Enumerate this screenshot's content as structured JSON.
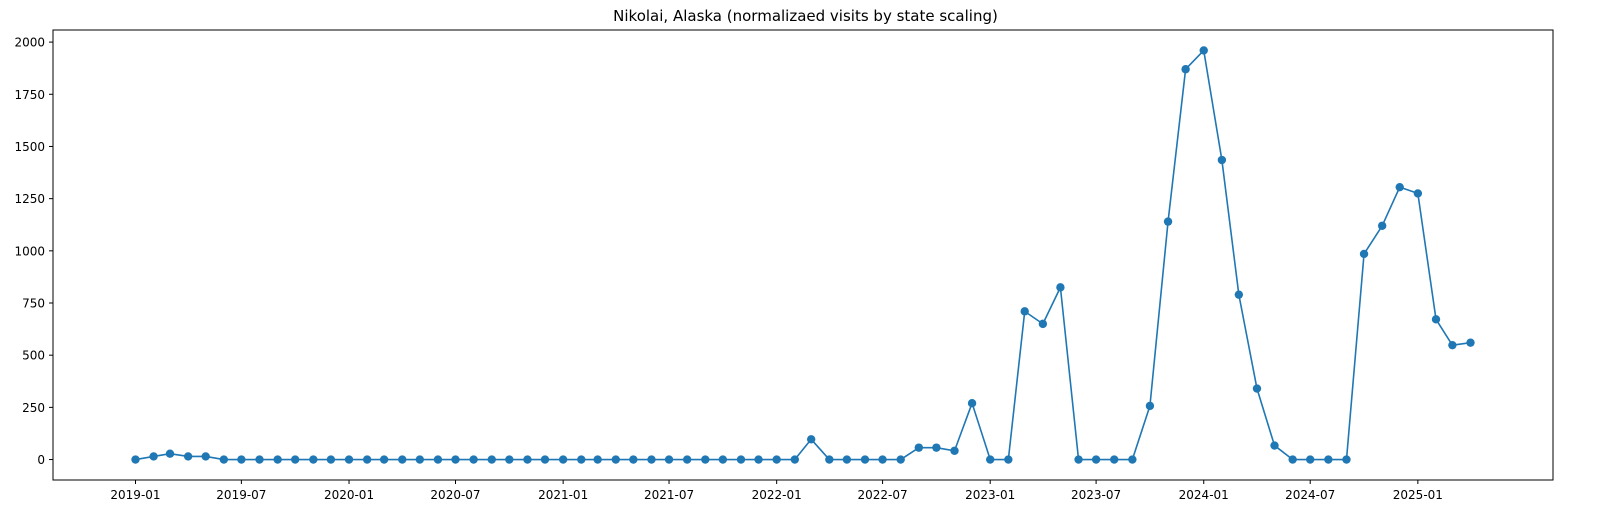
{
  "chart_data": {
    "type": "line",
    "title": "Nikolai, Alaska (normalizaed visits by state scaling)",
    "xlabel": "",
    "ylabel": "",
    "color": "#1f77b4",
    "marker": "circle",
    "grid": false,
    "legend": false,
    "xlim": [
      "2018-08-13",
      "2025-08-20"
    ],
    "ylim": [
      -98,
      2058
    ],
    "x_ticks": [
      "2019-01",
      "2019-07",
      "2020-01",
      "2020-07",
      "2021-01",
      "2021-07",
      "2022-01",
      "2022-07",
      "2023-01",
      "2023-07",
      "2024-01",
      "2024-07",
      "2025-01"
    ],
    "y_ticks": [
      0,
      250,
      500,
      750,
      1000,
      1250,
      1500,
      1750,
      2000
    ],
    "series": [
      {
        "x": [
          "2019-01",
          "2019-02",
          "2019-03",
          "2019-04",
          "2019-05",
          "2019-06",
          "2019-07",
          "2019-08",
          "2019-09",
          "2019-10",
          "2019-11",
          "2019-12",
          "2020-01",
          "2020-02",
          "2020-03",
          "2020-04",
          "2020-05",
          "2020-06",
          "2020-07",
          "2020-08",
          "2020-09",
          "2020-10",
          "2020-11",
          "2020-12",
          "2021-01",
          "2021-02",
          "2021-03",
          "2021-04",
          "2021-05",
          "2021-06",
          "2021-07",
          "2021-08",
          "2021-09",
          "2021-10",
          "2021-11",
          "2021-12",
          "2022-01",
          "2022-02",
          "2022-03",
          "2022-04",
          "2022-05",
          "2022-06",
          "2022-07",
          "2022-08",
          "2022-09",
          "2022-10",
          "2022-11",
          "2022-12",
          "2023-01",
          "2023-02",
          "2023-03",
          "2023-04",
          "2023-05",
          "2023-06",
          "2023-07",
          "2023-08",
          "2023-09",
          "2023-10",
          "2023-11",
          "2023-12",
          "2024-01",
          "2024-02",
          "2024-03",
          "2024-04",
          "2024-05",
          "2024-06",
          "2024-07",
          "2024-08",
          "2024-09",
          "2024-10",
          "2024-11",
          "2024-12",
          "2025-01",
          "2025-02",
          "2025-03",
          "2025-04"
        ],
        "values": [
          0,
          15,
          28,
          15,
          15,
          0,
          0,
          0,
          0,
          0,
          0,
          0,
          0,
          0,
          0,
          0,
          0,
          0,
          0,
          0,
          0,
          0,
          0,
          0,
          0,
          0,
          0,
          0,
          0,
          0,
          0,
          0,
          0,
          0,
          0,
          0,
          0,
          0,
          97,
          0,
          0,
          0,
          0,
          0,
          57,
          57,
          42,
          270,
          0,
          0,
          710,
          650,
          825,
          0,
          0,
          0,
          0,
          257,
          1140,
          1870,
          1960,
          1435,
          790,
          340,
          67,
          0,
          0,
          0,
          0,
          985,
          1120,
          1305,
          1275,
          672,
          548,
          560
        ]
      }
    ]
  }
}
